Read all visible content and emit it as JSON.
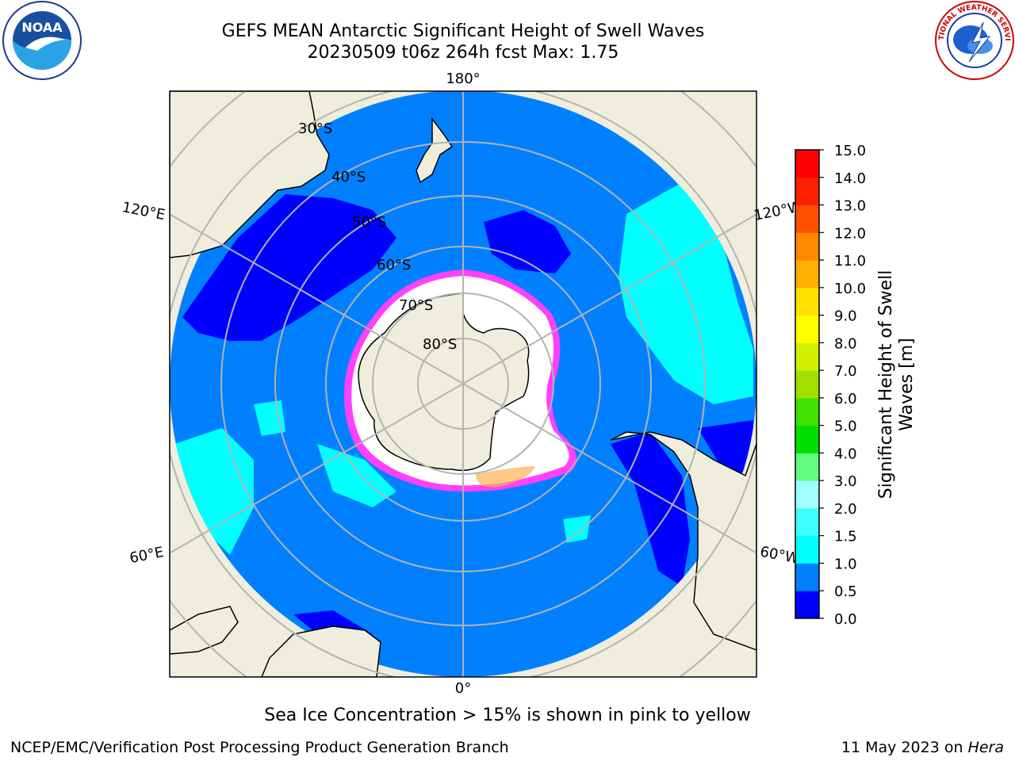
{
  "title": {
    "line1": "GEFS MEAN Antarctic Significant Height of Swell Waves",
    "line2": "20230509 t06z 264h fcst   Max: 1.75"
  },
  "logos": {
    "left": {
      "icon": "noaa-logo",
      "text": "NOAA"
    },
    "right": {
      "icon": "nws-logo",
      "text": "NATIONAL WEATHER SERVICE"
    }
  },
  "map": {
    "projection": "south-polar-stereographic",
    "longitude_labels": {
      "top": "180°",
      "bottom": "0°",
      "upper_left": "120°E",
      "upper_right": "120°W",
      "lower_left": "60°E",
      "lower_right": "60°W"
    },
    "latitude_labels": [
      "30°S",
      "40°S",
      "50°S",
      "60°S",
      "70°S",
      "80°S"
    ],
    "colors": {
      "land": "#efeedd",
      "ocean_low": "#0080ff",
      "ocean_lowest": "#0000ff",
      "swell_1_1_5": "#00ffff",
      "ice_edge": "#ff00ff",
      "ice": "#ffffff",
      "grid": "#b3b3b3"
    }
  },
  "colorbar": {
    "label_line1": "Significant Height of Swell",
    "label_line2": "Waves [m]",
    "ticks": [
      "0.0",
      "0.5",
      "1.0",
      "1.5",
      "2.0",
      "3.0",
      "4.0",
      "5.0",
      "6.0",
      "7.0",
      "8.0",
      "9.0",
      "10.0",
      "11.0",
      "12.0",
      "13.0",
      "14.0",
      "15.0"
    ],
    "colors": [
      "#0000ff",
      "#0080ff",
      "#00ffff",
      "#40ffff",
      "#a0ffff",
      "#60ff80",
      "#00e000",
      "#40e000",
      "#a0e000",
      "#d0f000",
      "#ffff00",
      "#ffe000",
      "#ffb000",
      "#ff8800",
      "#ff5000",
      "#ff2000",
      "#ff0000"
    ]
  },
  "footer": {
    "ice_note": "Sea Ice Concentration > 15% is shown in pink to yellow",
    "left": "NCEP/EMC/Verification Post Processing Product Generation Branch",
    "right_prefix": "11 May 2023 on ",
    "right_host": "Hera"
  }
}
